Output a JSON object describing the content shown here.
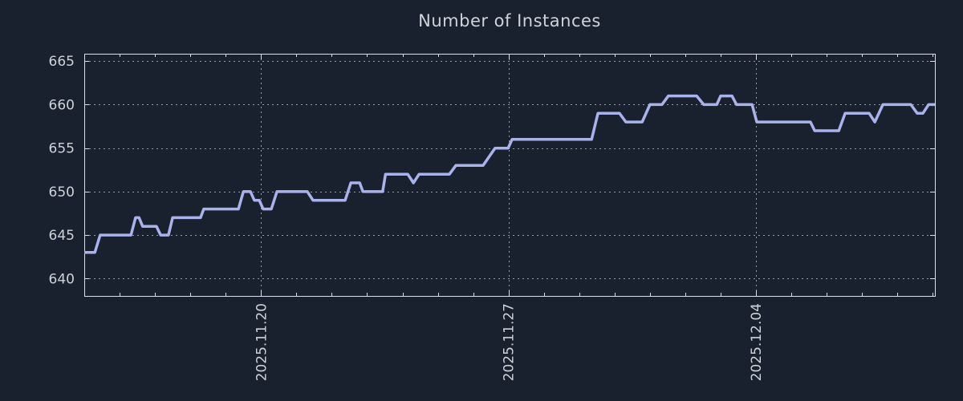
{
  "colors": {
    "background": "#19212f",
    "border": "#dce0e4",
    "grid": "#a8aeb5",
    "text": "#ced3d8",
    "series_line": "#aab2ec"
  },
  "chart_data": {
    "type": "line",
    "title": "Number of Instances",
    "grid": true,
    "legend": "none",
    "x_axis": {
      "unit": "days since 2025-11-15",
      "range": [
        0,
        24.06
      ],
      "minor_every": 1,
      "major_ticks": [
        {
          "day": 5,
          "label": "2025.11.20"
        },
        {
          "day": 12,
          "label": "2025.11.27"
        },
        {
          "day": 19,
          "label": "2025.12.04"
        }
      ]
    },
    "y_axis": {
      "range": [
        638,
        665.85
      ],
      "ticks": [
        640,
        645,
        650,
        655,
        660,
        665
      ]
    },
    "series": [
      {
        "name": "instances",
        "color": "#aab2ec",
        "points": [
          [
            0,
            643
          ],
          [
            0.3,
            643
          ],
          [
            0.45,
            645
          ],
          [
            1.32,
            645
          ],
          [
            1.45,
            647
          ],
          [
            1.55,
            647
          ],
          [
            1.65,
            646
          ],
          [
            2.04,
            646
          ],
          [
            2.16,
            645
          ],
          [
            2.38,
            645
          ],
          [
            2.5,
            647
          ],
          [
            3.29,
            647
          ],
          [
            3.38,
            648
          ],
          [
            4.36,
            648
          ],
          [
            4.5,
            650
          ],
          [
            4.7,
            650
          ],
          [
            4.81,
            649
          ],
          [
            4.95,
            649
          ],
          [
            5.06,
            648
          ],
          [
            5.29,
            648
          ],
          [
            5.45,
            650
          ],
          [
            6.31,
            650
          ],
          [
            6.47,
            649
          ],
          [
            7.38,
            649
          ],
          [
            7.54,
            651
          ],
          [
            7.79,
            651
          ],
          [
            7.88,
            650
          ],
          [
            8.44,
            650
          ],
          [
            8.52,
            652
          ],
          [
            9.15,
            652
          ],
          [
            9.31,
            651
          ],
          [
            9.47,
            652
          ],
          [
            10.33,
            652
          ],
          [
            10.51,
            653
          ],
          [
            11.28,
            653
          ],
          [
            11.62,
            655
          ],
          [
            11.99,
            655
          ],
          [
            12.1,
            656
          ],
          [
            14.35,
            656
          ],
          [
            14.53,
            659
          ],
          [
            15.14,
            659
          ],
          [
            15.32,
            658
          ],
          [
            15.78,
            658
          ],
          [
            16.0,
            660
          ],
          [
            16.34,
            660
          ],
          [
            16.52,
            661
          ],
          [
            17.32,
            661
          ],
          [
            17.52,
            660
          ],
          [
            17.89,
            660
          ],
          [
            18.0,
            661
          ],
          [
            18.32,
            661
          ],
          [
            18.45,
            660
          ],
          [
            18.89,
            660
          ],
          [
            19.02,
            658
          ],
          [
            20.54,
            658
          ],
          [
            20.66,
            657
          ],
          [
            21.34,
            657
          ],
          [
            21.52,
            659
          ],
          [
            22.2,
            659
          ],
          [
            22.36,
            658
          ],
          [
            22.59,
            660
          ],
          [
            23.38,
            660
          ],
          [
            23.56,
            659
          ],
          [
            23.72,
            659
          ],
          [
            23.88,
            660
          ],
          [
            24.06,
            660
          ]
        ]
      }
    ]
  }
}
